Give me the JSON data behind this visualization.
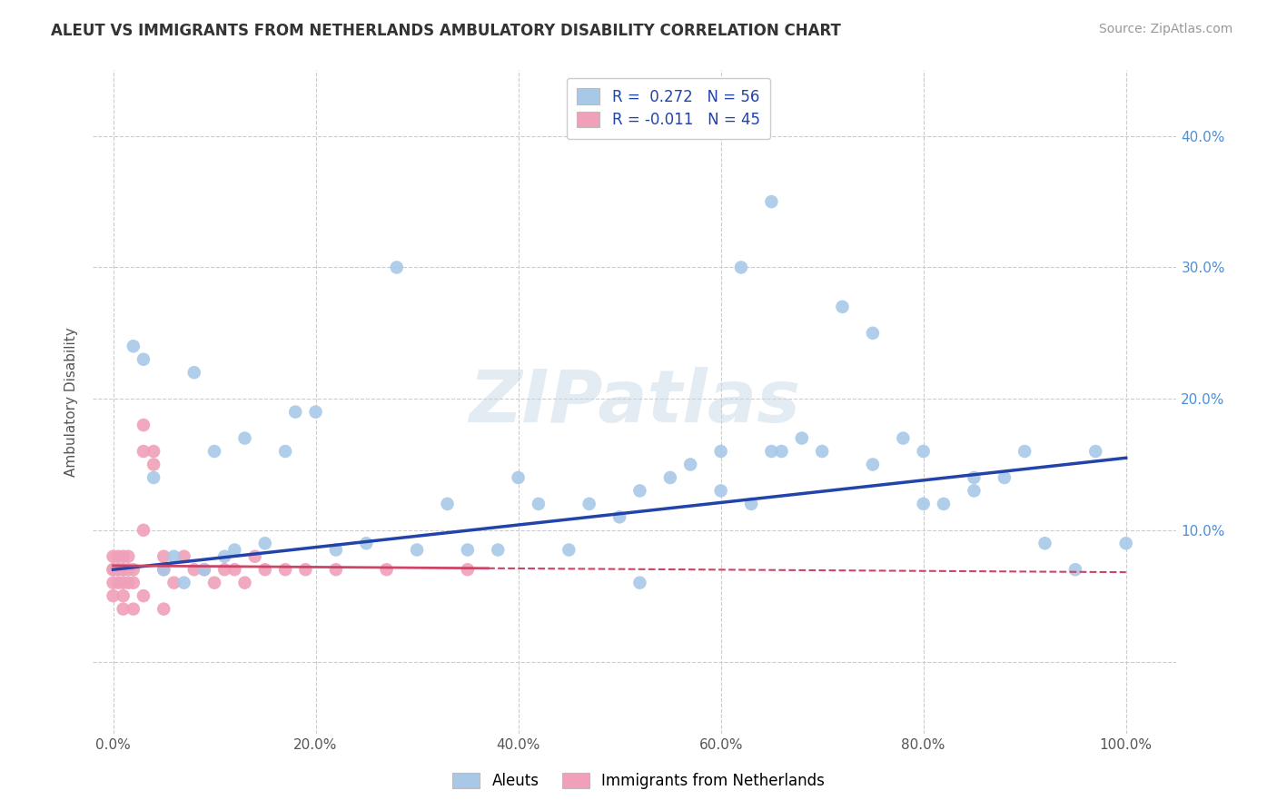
{
  "title": "ALEUT VS IMMIGRANTS FROM NETHERLANDS AMBULATORY DISABILITY CORRELATION CHART",
  "source": "Source: ZipAtlas.com",
  "ylabel": "Ambulatory Disability",
  "x_ticks": [
    0.0,
    0.2,
    0.4,
    0.6,
    0.8,
    1.0
  ],
  "x_tick_labels": [
    "0.0%",
    "20.0%",
    "40.0%",
    "60.0%",
    "80.0%",
    "100.0%"
  ],
  "y_ticks": [
    0.0,
    0.1,
    0.2,
    0.3,
    0.4
  ],
  "y_tick_labels_right": [
    "",
    "10.0%",
    "20.0%",
    "30.0%",
    "40.0%"
  ],
  "xlim": [
    -0.02,
    1.05
  ],
  "ylim": [
    -0.055,
    0.45
  ],
  "blue_color": "#a8c8e8",
  "pink_color": "#f0a0b8",
  "blue_line_color": "#2244aa",
  "pink_line_color": "#cc4466",
  "grid_color": "#cccccc",
  "bg_color": "#ffffff",
  "watermark": "ZIPatlas",
  "legend_R_blue": "R =  0.272",
  "legend_N_blue": "N = 56",
  "legend_R_pink": "R = -0.011",
  "legend_N_pink": "N = 45",
  "legend_label_blue": "Aleuts",
  "legend_label_pink": "Immigrants from Netherlands",
  "blue_line_x0": 0.0,
  "blue_line_y0": 0.07,
  "blue_line_x1": 1.0,
  "blue_line_y1": 0.155,
  "pink_line_x0": 0.0,
  "pink_line_y0": 0.073,
  "pink_line_x1_solid": 0.37,
  "pink_line_y1_solid": 0.071,
  "pink_line_x1_dash": 1.0,
  "pink_line_y1_dash": 0.068,
  "blue_scatter_x": [
    0.02,
    0.04,
    0.05,
    0.06,
    0.07,
    0.09,
    0.1,
    0.11,
    0.13,
    0.15,
    0.17,
    0.2,
    0.22,
    0.28,
    0.3,
    0.33,
    0.35,
    0.38,
    0.4,
    0.42,
    0.45,
    0.47,
    0.5,
    0.52,
    0.55,
    0.57,
    0.6,
    0.62,
    0.65,
    0.66,
    0.68,
    0.7,
    0.72,
    0.75,
    0.78,
    0.8,
    0.82,
    0.85,
    0.88,
    0.9,
    0.92,
    0.95,
    0.97,
    1.0,
    0.03,
    0.08,
    0.12,
    0.6,
    0.65,
    0.75,
    0.8,
    0.52,
    0.18,
    0.25,
    0.63,
    0.85
  ],
  "blue_scatter_y": [
    0.24,
    0.14,
    0.07,
    0.08,
    0.06,
    0.07,
    0.16,
    0.08,
    0.17,
    0.09,
    0.16,
    0.19,
    0.085,
    0.3,
    0.085,
    0.12,
    0.085,
    0.085,
    0.14,
    0.12,
    0.085,
    0.12,
    0.11,
    0.13,
    0.14,
    0.15,
    0.13,
    0.3,
    0.16,
    0.16,
    0.17,
    0.16,
    0.27,
    0.15,
    0.17,
    0.16,
    0.12,
    0.14,
    0.14,
    0.16,
    0.09,
    0.07,
    0.16,
    0.09,
    0.23,
    0.22,
    0.085,
    0.16,
    0.35,
    0.25,
    0.12,
    0.06,
    0.19,
    0.09,
    0.12,
    0.13
  ],
  "pink_scatter_x": [
    0.0,
    0.0,
    0.0,
    0.0,
    0.0,
    0.005,
    0.005,
    0.005,
    0.005,
    0.01,
    0.01,
    0.01,
    0.01,
    0.015,
    0.015,
    0.015,
    0.02,
    0.02,
    0.03,
    0.03,
    0.03,
    0.04,
    0.04,
    0.05,
    0.05,
    0.06,
    0.07,
    0.08,
    0.09,
    0.1,
    0.11,
    0.12,
    0.13,
    0.14,
    0.15,
    0.17,
    0.19,
    0.22,
    0.27,
    0.35,
    0.01,
    0.01,
    0.02,
    0.03,
    0.05
  ],
  "pink_scatter_y": [
    0.07,
    0.06,
    0.07,
    0.05,
    0.08,
    0.07,
    0.06,
    0.08,
    0.07,
    0.06,
    0.07,
    0.08,
    0.07,
    0.07,
    0.08,
    0.06,
    0.07,
    0.06,
    0.18,
    0.16,
    0.1,
    0.15,
    0.16,
    0.08,
    0.07,
    0.06,
    0.08,
    0.07,
    0.07,
    0.06,
    0.07,
    0.07,
    0.06,
    0.08,
    0.07,
    0.07,
    0.07,
    0.07,
    0.07,
    0.07,
    0.05,
    0.04,
    0.04,
    0.05,
    0.04
  ]
}
